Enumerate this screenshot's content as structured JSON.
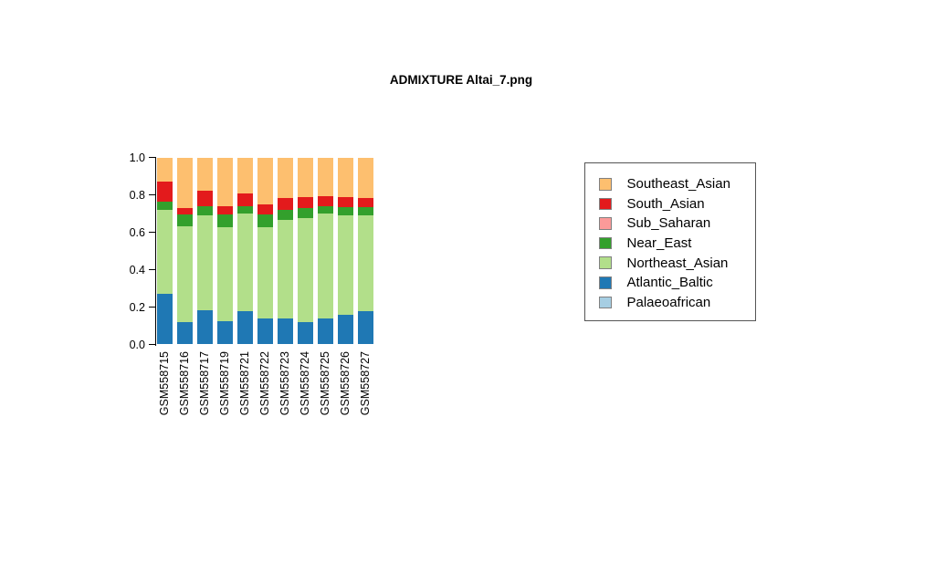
{
  "page": {
    "title": "ADMIXTURE Altai_7.png"
  },
  "chart_data": {
    "type": "bar",
    "stacked": true,
    "title": "ADMIXTURE Altai_7.png",
    "xlabel": "",
    "ylabel": "",
    "ylim": [
      0,
      1
    ],
    "ytick_labels": [
      "0.0",
      "0.2",
      "0.4",
      "0.6",
      "0.8",
      "1.0"
    ],
    "grid": false,
    "legend_position": "right",
    "categories": [
      "GSM558715",
      "GSM558716",
      "GSM558717",
      "GSM558719",
      "GSM558721",
      "GSM558722",
      "GSM558723",
      "GSM558724",
      "GSM558725",
      "GSM558726",
      "GSM558727"
    ],
    "series": [
      {
        "name": "Palaeoafrican",
        "color": "#A6CEE3",
        "values": [
          0,
          0,
          0,
          0,
          0,
          0,
          0,
          0,
          0,
          0,
          0
        ]
      },
      {
        "name": "Atlantic_Baltic",
        "color": "#1F78B4",
        "values": [
          0.27,
          0.117,
          0.185,
          0.123,
          0.177,
          0.137,
          0.141,
          0.12,
          0.14,
          0.156,
          0.18
        ]
      },
      {
        "name": "Northeast_Asian",
        "color": "#B2DF8A",
        "values": [
          0.45,
          0.513,
          0.503,
          0.505,
          0.525,
          0.491,
          0.527,
          0.557,
          0.558,
          0.533,
          0.512
        ]
      },
      {
        "name": "Near_East",
        "color": "#33A02C",
        "values": [
          0.042,
          0.063,
          0.049,
          0.065,
          0.035,
          0.065,
          0.051,
          0.053,
          0.043,
          0.044,
          0.04
        ]
      },
      {
        "name": "Sub_Saharan",
        "color": "#FB9A99",
        "values": [
          0,
          0,
          0,
          0,
          0,
          0,
          0,
          0,
          0,
          0,
          0
        ]
      },
      {
        "name": "South_Asian",
        "color": "#E31A1C",
        "values": [
          0.11,
          0.037,
          0.083,
          0.048,
          0.068,
          0.058,
          0.065,
          0.057,
          0.054,
          0.054,
          0.052
        ]
      },
      {
        "name": "Southeast_Asian",
        "color": "#FDBF6F",
        "values": [
          0.128,
          0.27,
          0.18,
          0.259,
          0.195,
          0.249,
          0.216,
          0.213,
          0.205,
          0.213,
          0.216
        ]
      }
    ],
    "legend_entries_top_to_bottom": [
      "Southeast_Asian",
      "South_Asian",
      "Sub_Saharan",
      "Near_East",
      "Northeast_Asian",
      "Atlantic_Baltic",
      "Palaeoafrican"
    ]
  }
}
